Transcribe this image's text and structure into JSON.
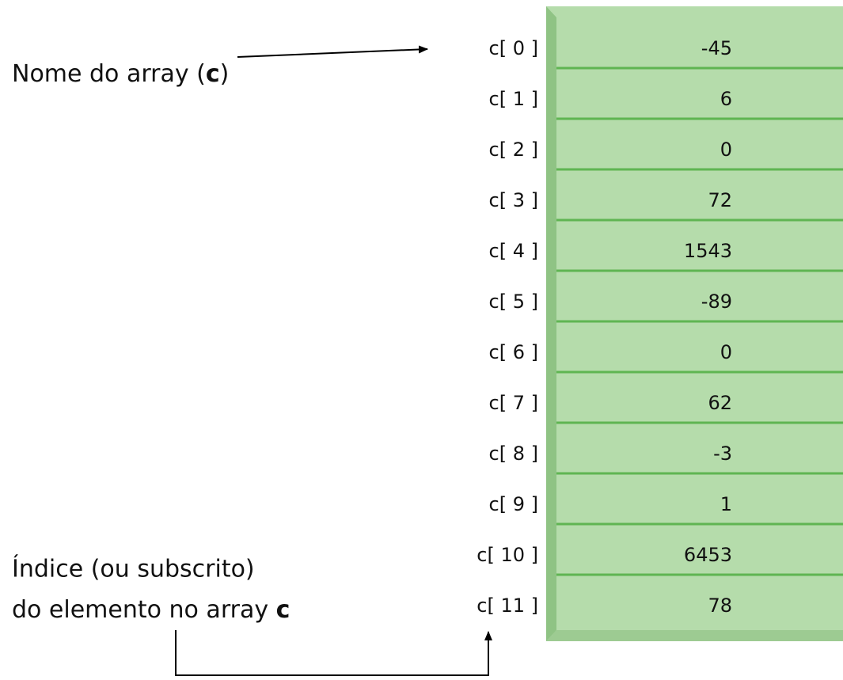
{
  "name_label": {
    "before": "Nome do array (",
    "bold": "c",
    "after": ")"
  },
  "index_label": {
    "line1": "Índice (ou subscrito)",
    "line2": "do elemento no array ",
    "bold": "c"
  },
  "elements": [
    {
      "index": "c[ 0 ]",
      "value": -45
    },
    {
      "index": "c[ 1 ]",
      "value": 6
    },
    {
      "index": "c[ 2 ]",
      "value": 0
    },
    {
      "index": "c[ 3 ]",
      "value": 72
    },
    {
      "index": "c[ 4 ]",
      "value": 1543
    },
    {
      "index": "c[ 5 ]",
      "value": -89
    },
    {
      "index": "c[ 6 ]",
      "value": 0
    },
    {
      "index": "c[ 7 ]",
      "value": 62
    },
    {
      "index": "c[ 8 ]",
      "value": -3
    },
    {
      "index": "c[ 9 ]",
      "value": 1
    },
    {
      "index": "c[ 10 ]",
      "value": 6453
    },
    {
      "index": "c[ 11 ]",
      "value": 78
    }
  ]
}
